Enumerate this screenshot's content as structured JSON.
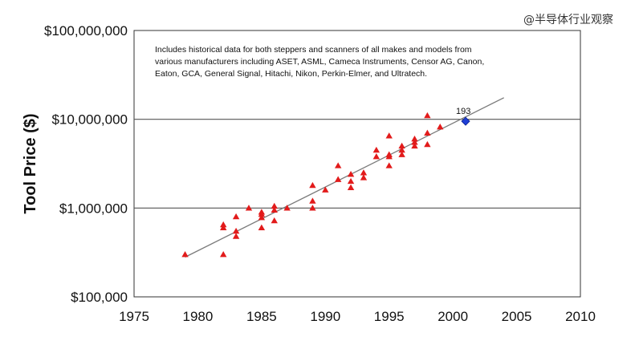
{
  "watermark": "@半导体行业观察",
  "chart_data": {
    "type": "scatter",
    "y_scale": "log",
    "ylabel": "Tool Price ($)",
    "xlabel": "",
    "xlim": [
      1975,
      2010
    ],
    "ylim": [
      100000,
      100000000
    ],
    "x_ticks": [
      1975,
      1980,
      1985,
      1990,
      1995,
      2000,
      2005,
      2010
    ],
    "x_tick_labels": [
      "1975",
      "1980",
      "1985",
      "1990",
      "1995",
      "2000",
      "2005",
      "2010"
    ],
    "y_ticks": [
      100000,
      1000000,
      10000000,
      100000000
    ],
    "y_tick_labels": [
      "$100,000",
      "$1,000,000",
      "$10,000,000",
      "$100,000,000"
    ],
    "gridlines_y": [
      1000000,
      10000000
    ],
    "annotation": [
      "Includes historical data for both steppers and scanners of all makes and models from",
      "various manufacturers including ASET, ASML, Cameca Instruments, Censor AG, Canon,",
      "Eaton, GCA, General Signal, Hitachi, Nikon, Perkin-Elmer, and Ultratech."
    ],
    "colors": {
      "historical": "#e21b1b",
      "highlight": "#1f3fd6",
      "trend": "#7a7a7a",
      "grid": "#555555"
    },
    "series": [
      {
        "marker": "triangle",
        "points": [
          [
            1979,
            300000
          ],
          [
            1982,
            300000
          ],
          [
            1982,
            600000
          ],
          [
            1982,
            650000
          ],
          [
            1983,
            480000
          ],
          [
            1983,
            550000
          ],
          [
            1983,
            800000
          ],
          [
            1984,
            1000000
          ],
          [
            1985,
            600000
          ],
          [
            1985,
            780000
          ],
          [
            1985,
            850000
          ],
          [
            1985,
            900000
          ],
          [
            1986,
            720000
          ],
          [
            1986,
            950000
          ],
          [
            1986,
            1050000
          ],
          [
            1987,
            1000000
          ],
          [
            1989,
            1000000
          ],
          [
            1989,
            1200000
          ],
          [
            1989,
            1800000
          ],
          [
            1990,
            1600000
          ],
          [
            1991,
            2100000
          ],
          [
            1991,
            3000000
          ],
          [
            1992,
            1700000
          ],
          [
            1992,
            2000000
          ],
          [
            1992,
            2400000
          ],
          [
            1993,
            2200000
          ],
          [
            1993,
            2500000
          ],
          [
            1994,
            3800000
          ],
          [
            1994,
            4500000
          ],
          [
            1995,
            3000000
          ],
          [
            1995,
            3800000
          ],
          [
            1995,
            4000000
          ],
          [
            1995,
            6500000
          ],
          [
            1996,
            4000000
          ],
          [
            1996,
            4500000
          ],
          [
            1996,
            5000000
          ],
          [
            1997,
            5000000
          ],
          [
            1997,
            5500000
          ],
          [
            1997,
            6000000
          ],
          [
            1998,
            5200000
          ],
          [
            1998,
            7000000
          ],
          [
            1998,
            11000000
          ],
          [
            1999,
            8200000
          ]
        ]
      },
      {
        "marker": "diamond",
        "points": [
          [
            2001,
            9500000
          ]
        ],
        "label": "193"
      }
    ],
    "trend_line": {
      "from": [
        1979,
        280000
      ],
      "to": [
        2004,
        17500000
      ]
    }
  }
}
